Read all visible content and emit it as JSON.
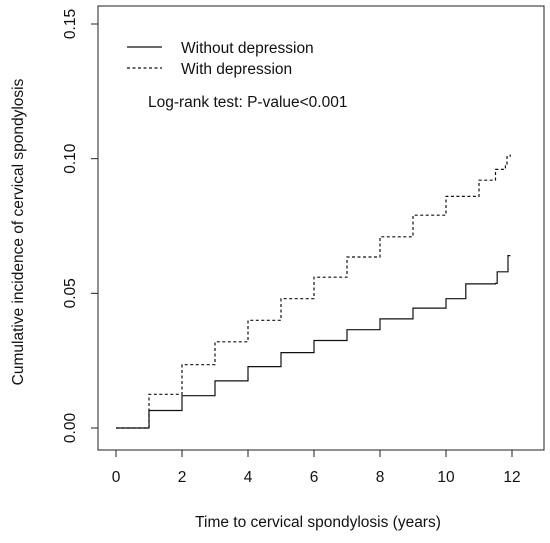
{
  "chart_data": {
    "type": "line",
    "xlabel": "Time to cervical spondylosis (years)",
    "ylabel": "Cumulative incidence of cervical spondylosis",
    "xlim": [
      0,
      12
    ],
    "ylim": [
      0,
      0.15
    ],
    "x_ticks": [
      "0",
      "2",
      "4",
      "6",
      "8",
      "10",
      "12"
    ],
    "y_ticks": [
      "0.00",
      "0.05",
      "0.10",
      "0.15"
    ],
    "grid": false,
    "legend_position": "top-left",
    "annotation": "Log-rank test: P-value<0.001",
    "series": [
      {
        "name": "Without depression",
        "line_style": "solid",
        "x": [
          0,
          1,
          2,
          3,
          4,
          5,
          6,
          7,
          8,
          9,
          10,
          10.6,
          11.5,
          11.55,
          11.85,
          11.88,
          11.95
        ],
        "y": [
          0,
          0.0065,
          0.012,
          0.0175,
          0.0228,
          0.028,
          0.0325,
          0.0365,
          0.0405,
          0.0445,
          0.048,
          0.0535,
          0.0537,
          0.058,
          0.058,
          0.064,
          0.064
        ]
      },
      {
        "name": "With depression",
        "line_style": "dashed",
        "x": [
          0,
          1,
          2,
          3,
          4,
          5,
          6,
          7,
          8,
          9,
          10,
          11,
          11.5,
          11.8,
          11.85,
          11.95
        ],
        "y": [
          0,
          0.0125,
          0.0235,
          0.032,
          0.04,
          0.048,
          0.056,
          0.0635,
          0.071,
          0.079,
          0.086,
          0.092,
          0.096,
          0.098,
          0.101,
          0.1015
        ]
      }
    ]
  }
}
